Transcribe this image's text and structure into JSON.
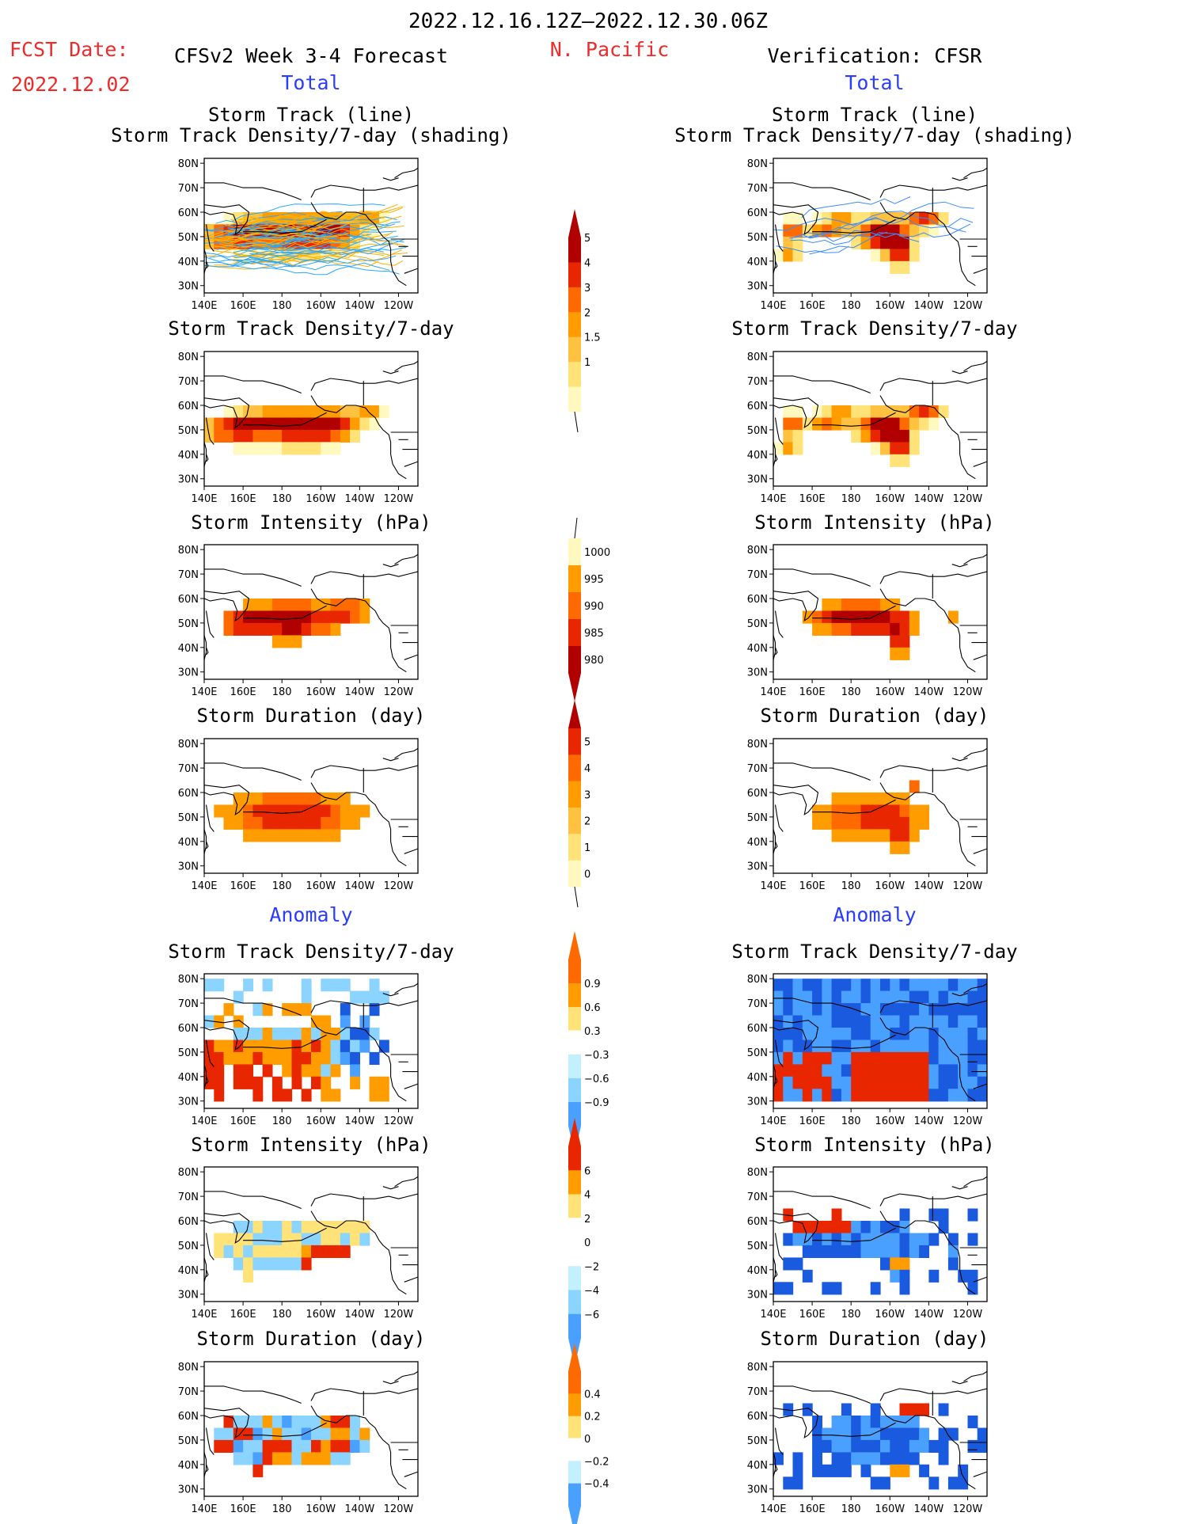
{
  "header": {
    "date_range": "2022.12.16.12Z–2022.12.30.06Z",
    "fcst_label": "FCST Date:",
    "fcst_date": "2022.12.02",
    "forecast_label": "CFSv2 Week 3-4 Forecast",
    "region": "N. Pacific",
    "verification_label": "Verification: CFSR"
  },
  "sections": {
    "total": "Total",
    "anomaly": "Anomaly"
  },
  "titles": {
    "track_line": "Storm Track (line)",
    "track_shading": "Storm Track Density/7-day (shading)",
    "density": "Storm Track Density/7-day",
    "intensity": "Storm Intensity (hPa)",
    "duration": "Storm Duration (day)"
  },
  "axes": {
    "lon": [
      "140E",
      "160E",
      "180",
      "160W",
      "140W",
      "120W"
    ],
    "lat": [
      "80N",
      "70N",
      "60N",
      "50N",
      "40N",
      "30N"
    ]
  },
  "colorbars": {
    "density_total": [
      "1",
      "1.5",
      "2",
      "3",
      "4",
      "5"
    ],
    "intensity_total": [
      "1000",
      "995",
      "990",
      "985",
      "980"
    ],
    "duration_total": [
      "0",
      "1",
      "2",
      "3",
      "4",
      "5"
    ],
    "density_anom": [
      "0.9",
      "0.6",
      "0.3",
      "−0.3",
      "−0.6",
      "−0.9"
    ],
    "intensity_anom": [
      "6",
      "4",
      "2",
      "0",
      "−2",
      "−4",
      "−6"
    ],
    "duration_anom": [
      "0.4",
      "0.2",
      "0",
      "−0.2",
      "−0.4"
    ]
  },
  "colors": {
    "warm": [
      "#fff9c0",
      "#ffe278",
      "#ffc240",
      "#ff9d00",
      "#ff6a00",
      "#e82600",
      "#b00000"
    ],
    "cool": [
      "#c2f0ff",
      "#8ad4ff",
      "#4aa0ff",
      "#1a5adf"
    ],
    "track_forecast": [
      "#2aa8ff",
      "#ffb000"
    ],
    "track_verif": [
      "#3a8cff"
    ]
  }
}
